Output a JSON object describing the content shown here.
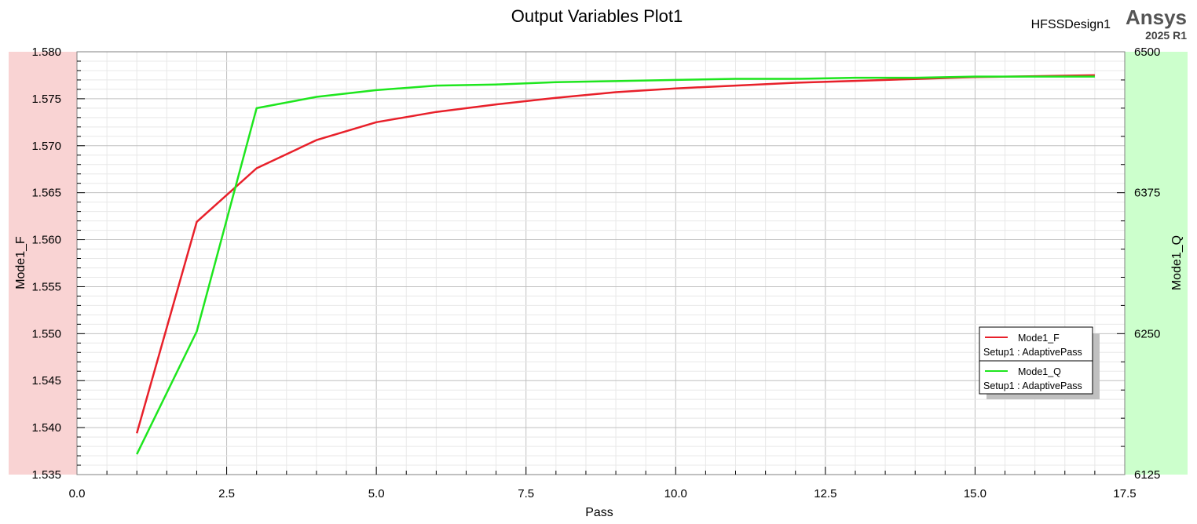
{
  "header": {
    "design_name": "HFSSDesign1",
    "brand": "Ansys",
    "version": "2025 R1"
  },
  "chart_data": {
    "type": "line",
    "title": "Output Variables Plot1",
    "xlabel": "Pass",
    "ylabel_left": "Mode1_F",
    "ylabel_right": "Mode1_Q",
    "xlim": [
      0,
      17.5
    ],
    "ylim_left": [
      1.535,
      1.58
    ],
    "ylim_right": [
      6125,
      6500
    ],
    "x_ticks": [
      "0.0",
      "2.5",
      "5.0",
      "7.5",
      "10.0",
      "12.5",
      "15.0",
      "17.5"
    ],
    "y_left_ticks": [
      "1.535",
      "1.540",
      "1.545",
      "1.550",
      "1.555",
      "1.560",
      "1.565",
      "1.570",
      "1.575",
      "1.580"
    ],
    "y_right_ticks": [
      "6125",
      "6250",
      "6375",
      "6500"
    ],
    "grid": true,
    "legend_position": "right",
    "left_axis_band_color": "#f9d3d3",
    "right_axis_band_color": "#ccffcc",
    "series": [
      {
        "name": "Mode1_F",
        "context": "Setup1 : AdaptivePass",
        "axis": "left",
        "color": "#e8202a",
        "x": [
          1,
          2,
          3,
          4,
          5,
          6,
          7,
          8,
          9,
          10,
          11,
          12,
          13,
          14,
          15,
          16,
          17
        ],
        "y": [
          1.5394,
          1.5619,
          1.5676,
          1.5706,
          1.5725,
          1.5736,
          1.5744,
          1.5751,
          1.5757,
          1.5761,
          1.5764,
          1.5767,
          1.5769,
          1.5771,
          1.5773,
          1.5774,
          1.5775
        ]
      },
      {
        "name": "Mode1_Q",
        "context": "Setup1 : AdaptivePass",
        "axis": "right",
        "color": "#1ee61e",
        "x": [
          1,
          2,
          3,
          4,
          5,
          6,
          7,
          8,
          9,
          10,
          11,
          12,
          13,
          14,
          15,
          16,
          17
        ],
        "y": [
          6143,
          6252,
          6450,
          6460,
          6466,
          6470,
          6471,
          6473,
          6474,
          6475,
          6476,
          6476,
          6477,
          6477,
          6478,
          6478,
          6478
        ]
      }
    ]
  }
}
